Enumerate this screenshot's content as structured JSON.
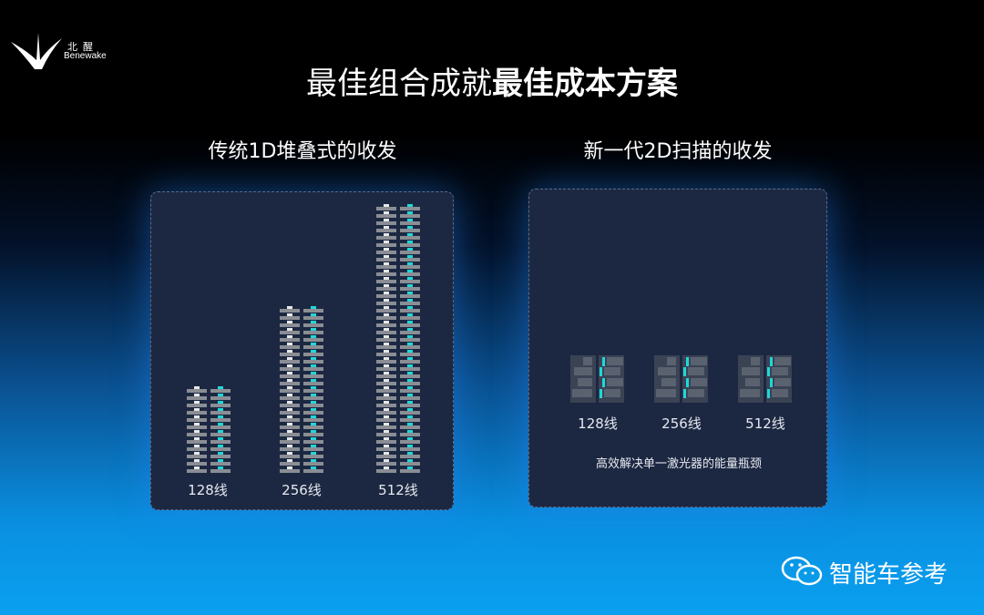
{
  "logo": {
    "cn": "北醒",
    "en": "Benewake"
  },
  "title": {
    "part1": "最佳组合成就",
    "part2": "最佳成本方案"
  },
  "left": {
    "heading": "传统1D堆叠式的收发",
    "labels": [
      "128线",
      "256线",
      "512线"
    ]
  },
  "right": {
    "heading": "新一代2D扫描的收发",
    "labels": [
      "128线",
      "256线",
      "512线"
    ],
    "note": "高效解决单一激光器的能量瓶颈"
  },
  "brand": {
    "icon": "wechat-icon",
    "text": "智能车参考"
  },
  "colors": {
    "accent": "#1fd8d8",
    "panel": "#1c2842"
  }
}
